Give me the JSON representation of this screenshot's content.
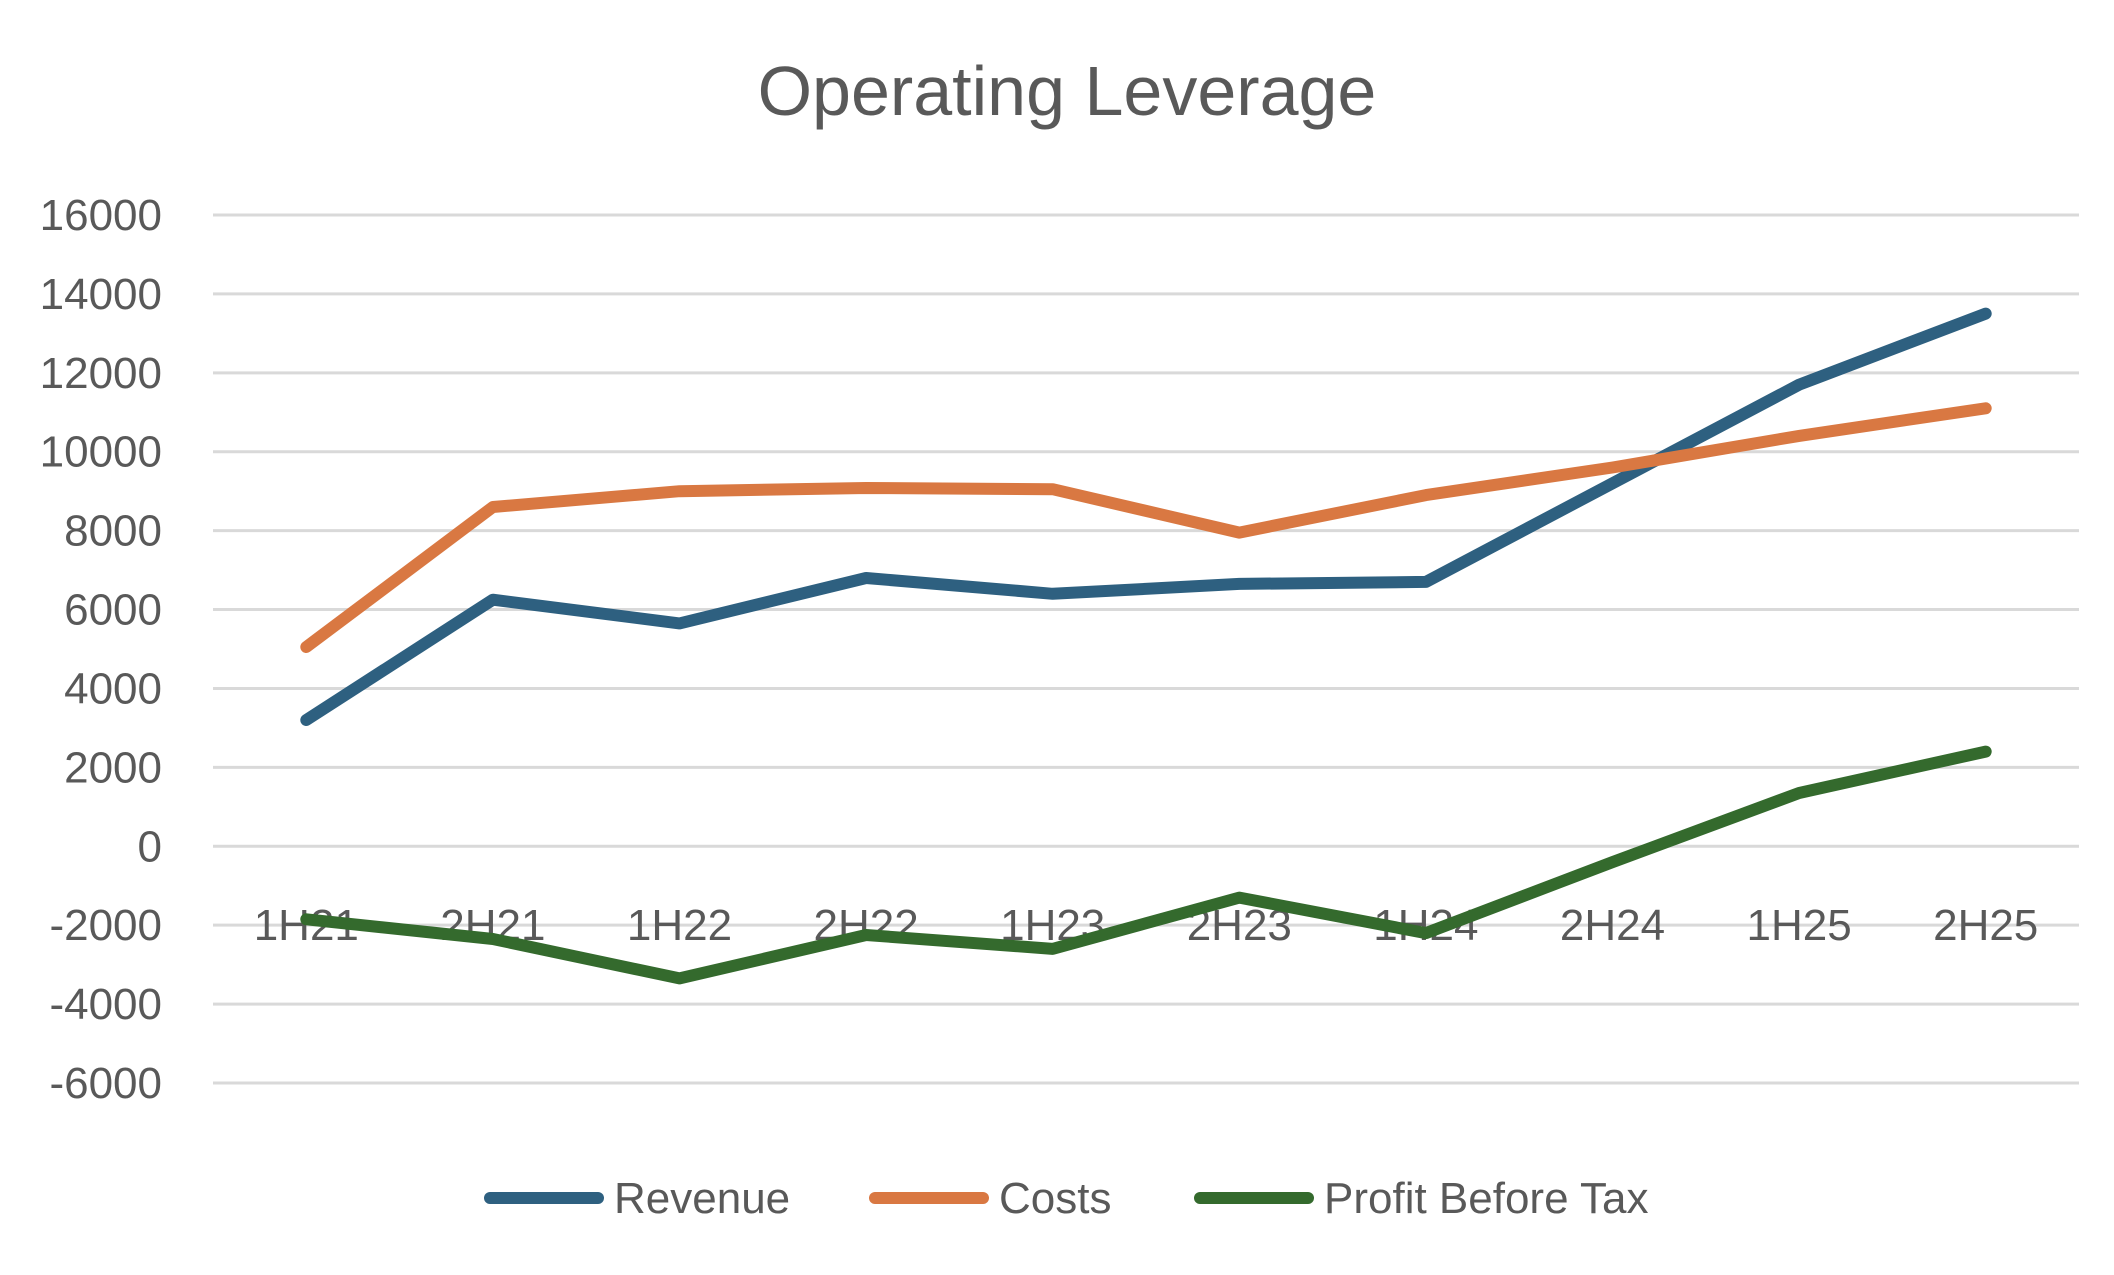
{
  "chart_data": {
    "type": "line",
    "title": "Operating Leverage",
    "xlabel": "",
    "ylabel": "",
    "categories": [
      "1H21",
      "2H21",
      "1H22",
      "2H22",
      "1H23",
      "2H23",
      "1H24",
      "2H24",
      "1H25",
      "2H25"
    ],
    "ylim": [
      -6000,
      16000
    ],
    "yticks": [
      16000,
      14000,
      12000,
      10000,
      8000,
      6000,
      4000,
      2000,
      0,
      -2000,
      -4000,
      -6000
    ],
    "ytick_labels": [
      "16000",
      "14000",
      "12000",
      "10000",
      "8000",
      "6000",
      "4000",
      "2000",
      "0",
      "-2000",
      "-4000",
      "-6000"
    ],
    "grid": true,
    "legend_position": "bottom",
    "series": [
      {
        "name": "Revenue",
        "color": "#2E6080",
        "values": [
          3200,
          6250,
          5650,
          6800,
          6400,
          6650,
          6700,
          9200,
          11700,
          13500
        ]
      },
      {
        "name": "Costs",
        "color": "#D97842",
        "values": [
          5050,
          8600,
          9000,
          9080,
          9050,
          7950,
          8900,
          9600,
          10400,
          11100
        ]
      },
      {
        "name": "Profit Before Tax",
        "color": "#346A2D",
        "values": [
          -1850,
          -2350,
          -3350,
          -2250,
          -2600,
          -1300,
          -2200,
          -400,
          1350,
          2400
        ]
      }
    ]
  }
}
